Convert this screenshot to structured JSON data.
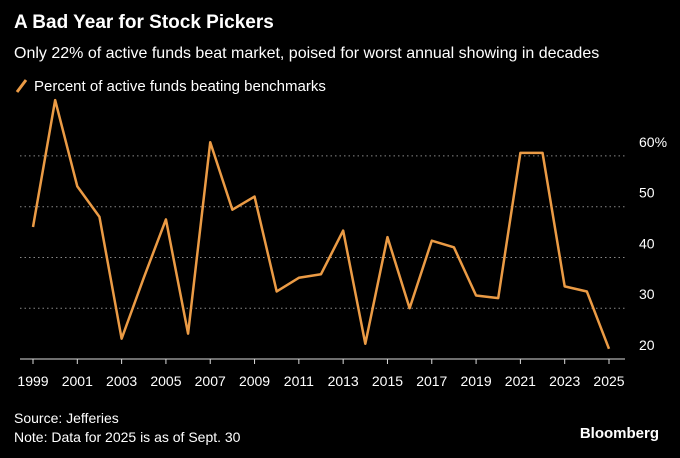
{
  "chart_data": {
    "type": "line",
    "title": "A Bad Year for Stock Pickers",
    "subtitle": "Only 22% of active funds beat market, poised for worst annual showing in decades",
    "x": [
      1999,
      2000,
      2001,
      2002,
      2003,
      2004,
      2005,
      2006,
      2007,
      2008,
      2009,
      2010,
      2011,
      2012,
      2013,
      2014,
      2015,
      2016,
      2017,
      2018,
      2019,
      2020,
      2021,
      2022,
      2023,
      2024,
      2025
    ],
    "series": [
      {
        "name": "Percent of active funds beating benchmarks",
        "color": "#eb9b45",
        "values": [
          46,
          71,
          54,
          48,
          24,
          36,
          47.5,
          25,
          62.7,
          49.4,
          52,
          33.3,
          36,
          36.7,
          45.3,
          23,
          44,
          30,
          43.3,
          42,
          32.5,
          32,
          60.6,
          60.6,
          34.3,
          33.3,
          22
        ]
      }
    ],
    "xlim": [
      1999,
      2025
    ],
    "xticks": [
      1999,
      2001,
      2003,
      2005,
      2007,
      2009,
      2011,
      2013,
      2015,
      2017,
      2019,
      2021,
      2023,
      2025
    ],
    "ylim": [
      20,
      72
    ],
    "yticks": [
      20,
      30,
      40,
      50,
      {
        "value": 60,
        "label": "60%"
      }
    ],
    "grid": true,
    "source": "Source: Jefferies",
    "note": "Note: Data for 2025 is as of Sept. 30",
    "brand": "Bloomberg"
  }
}
